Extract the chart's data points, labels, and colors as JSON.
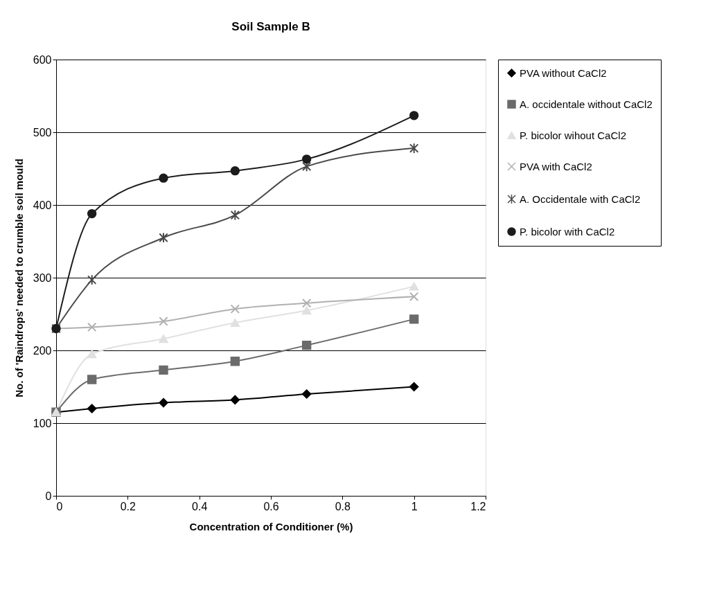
{
  "chart_data": {
    "type": "line",
    "title": "Soil Sample B",
    "xlabel": "Concentration of Conditioner (%)",
    "ylabel": "No. of 'Raindrops' needed to crumble soil mould",
    "x": [
      0,
      0.1,
      0.3,
      0.5,
      0.7,
      1
    ],
    "series": [
      {
        "name": "PVA without CaCl2",
        "color": "#000000",
        "marker": "diamond",
        "values": [
          115,
          120,
          128,
          132,
          140,
          150
        ]
      },
      {
        "name": "A. occidentale without CaCl2",
        "color": "#6b6b6b",
        "marker": "square",
        "values": [
          115,
          160,
          173,
          185,
          207,
          243
        ]
      },
      {
        "name": "P. bicolor wihout CaCl2",
        "color": "#e0e0e0",
        "marker": "triangle",
        "values": [
          115,
          195,
          216,
          238,
          255,
          288
        ]
      },
      {
        "name": "PVA with CaCl2",
        "color": "#b0b0b0",
        "marker": "cross",
        "values": [
          230,
          232,
          240,
          257,
          265,
          274
        ]
      },
      {
        "name": "A. Occidentale with CaCl2",
        "color": "#4a4a4a",
        "marker": "cross",
        "values": [
          230,
          297,
          355,
          386,
          453,
          478
        ]
      },
      {
        "name": "P. bicolor with CaCl2",
        "color": "#1c1c1c",
        "marker": "circle",
        "values": [
          230,
          388,
          437,
          447,
          463,
          523
        ]
      }
    ],
    "xlim": [
      0,
      1.2
    ],
    "xticks": [
      0,
      0.2,
      0.4,
      0.6,
      0.8,
      1,
      1.2
    ],
    "ylim": [
      0,
      600
    ],
    "yticks": [
      0,
      100,
      200,
      300,
      400,
      500,
      600
    ],
    "grid": "y",
    "legend": "right",
    "line_style": "solid"
  }
}
